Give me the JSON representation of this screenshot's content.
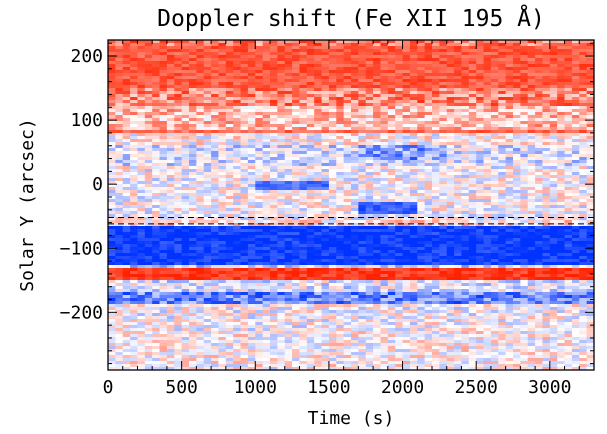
{
  "chart_data": {
    "type": "heatmap",
    "title": "Doppler shift (Fe XII 195 Å)",
    "xlabel": "Time (s)",
    "ylabel": "Solar Y (arcsec)",
    "xlim": [
      0,
      3300
    ],
    "ylim": [
      -290,
      225
    ],
    "xticks": [
      0,
      500,
      1000,
      1500,
      2000,
      2500,
      3000
    ],
    "yticks": [
      -200,
      -100,
      0,
      100,
      200
    ],
    "colormap": {
      "negative": "#0033ff",
      "zero": "#ffffff",
      "positive": "#ff2200"
    },
    "bands": [
      {
        "y_from": 225,
        "y_to": 215,
        "level": 0.6
      },
      {
        "y_from": 215,
        "y_to": 150,
        "level": 0.75
      },
      {
        "y_from": 150,
        "y_to": 120,
        "level": 0.55
      },
      {
        "y_from": 120,
        "y_to": 85,
        "level": 0.3
      },
      {
        "y_from": 85,
        "y_to": 78,
        "level": 0.7
      },
      {
        "y_from": 78,
        "y_to": 60,
        "level": 0.05
      },
      {
        "y_from": 60,
        "y_to": 30,
        "level": -0.15
      },
      {
        "y_from": 30,
        "y_to": -55,
        "level": 0.0
      },
      {
        "y_from": -55,
        "y_to": -65,
        "level": 0.15
      },
      {
        "y_from": -65,
        "y_to": -125,
        "level": -0.95
      },
      {
        "y_from": -125,
        "y_to": -132,
        "level": -0.2
      },
      {
        "y_from": -132,
        "y_to": -150,
        "level": 0.9
      },
      {
        "y_from": -150,
        "y_to": -170,
        "level": -0.1
      },
      {
        "y_from": -170,
        "y_to": -185,
        "level": -0.6
      },
      {
        "y_from": -185,
        "y_to": -230,
        "level": 0.0
      },
      {
        "y_from": -230,
        "y_to": -290,
        "level": 0.05
      }
    ],
    "patches": [
      {
        "x_from": 1000,
        "x_to": 1500,
        "y_from": 5,
        "y_to": -8,
        "level": -0.7
      },
      {
        "x_from": 1700,
        "x_to": 2100,
        "y_from": -30,
        "y_to": -48,
        "level": -0.8
      },
      {
        "x_from": 1700,
        "x_to": 2300,
        "y_from": 60,
        "y_to": 40,
        "level": -0.5
      }
    ],
    "reference_lines": [
      -52,
      -62
    ],
    "reference_line_style": "dashed",
    "grid": false,
    "legend": "none"
  }
}
